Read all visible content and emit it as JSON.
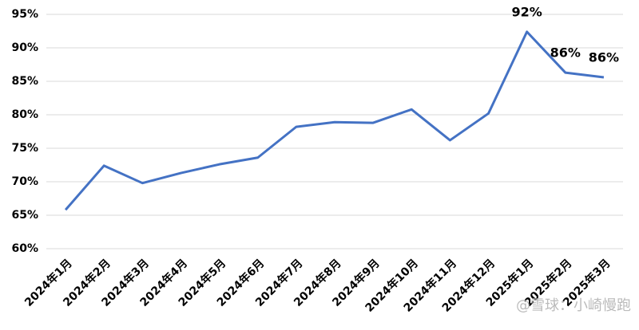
{
  "chart_data": {
    "type": "line",
    "categories": [
      "2024年1月",
      "2024年2月",
      "2024年3月",
      "2024年4月",
      "2024年5月",
      "2024年6月",
      "2024年7月",
      "2024年8月",
      "2024年9月",
      "2024年10月",
      "2024年11月",
      "2024年12月",
      "2025年1月",
      "2025年2月",
      "2025年3月"
    ],
    "values": [
      65.8,
      72.4,
      69.8,
      71.3,
      72.6,
      73.6,
      78.2,
      78.9,
      78.8,
      80.8,
      76.2,
      80.2,
      92.4,
      86.3,
      85.6
    ],
    "value_labels": [
      null,
      null,
      null,
      null,
      null,
      null,
      null,
      null,
      null,
      null,
      null,
      null,
      "92%",
      "86%",
      "86%"
    ],
    "color": "#4472c4",
    "ylim": [
      60,
      95
    ],
    "yticks": [
      {
        "value": 60,
        "label": "60%"
      },
      {
        "value": 65,
        "label": "65%"
      },
      {
        "value": 70,
        "label": "70%"
      },
      {
        "value": 75,
        "label": "75%"
      },
      {
        "value": 80,
        "label": "80%"
      },
      {
        "value": 85,
        "label": "85%"
      },
      {
        "value": 90,
        "label": "90%"
      },
      {
        "value": 95,
        "label": "95%"
      }
    ],
    "grid": true,
    "watermark": "@雪球：小崎慢跑"
  }
}
